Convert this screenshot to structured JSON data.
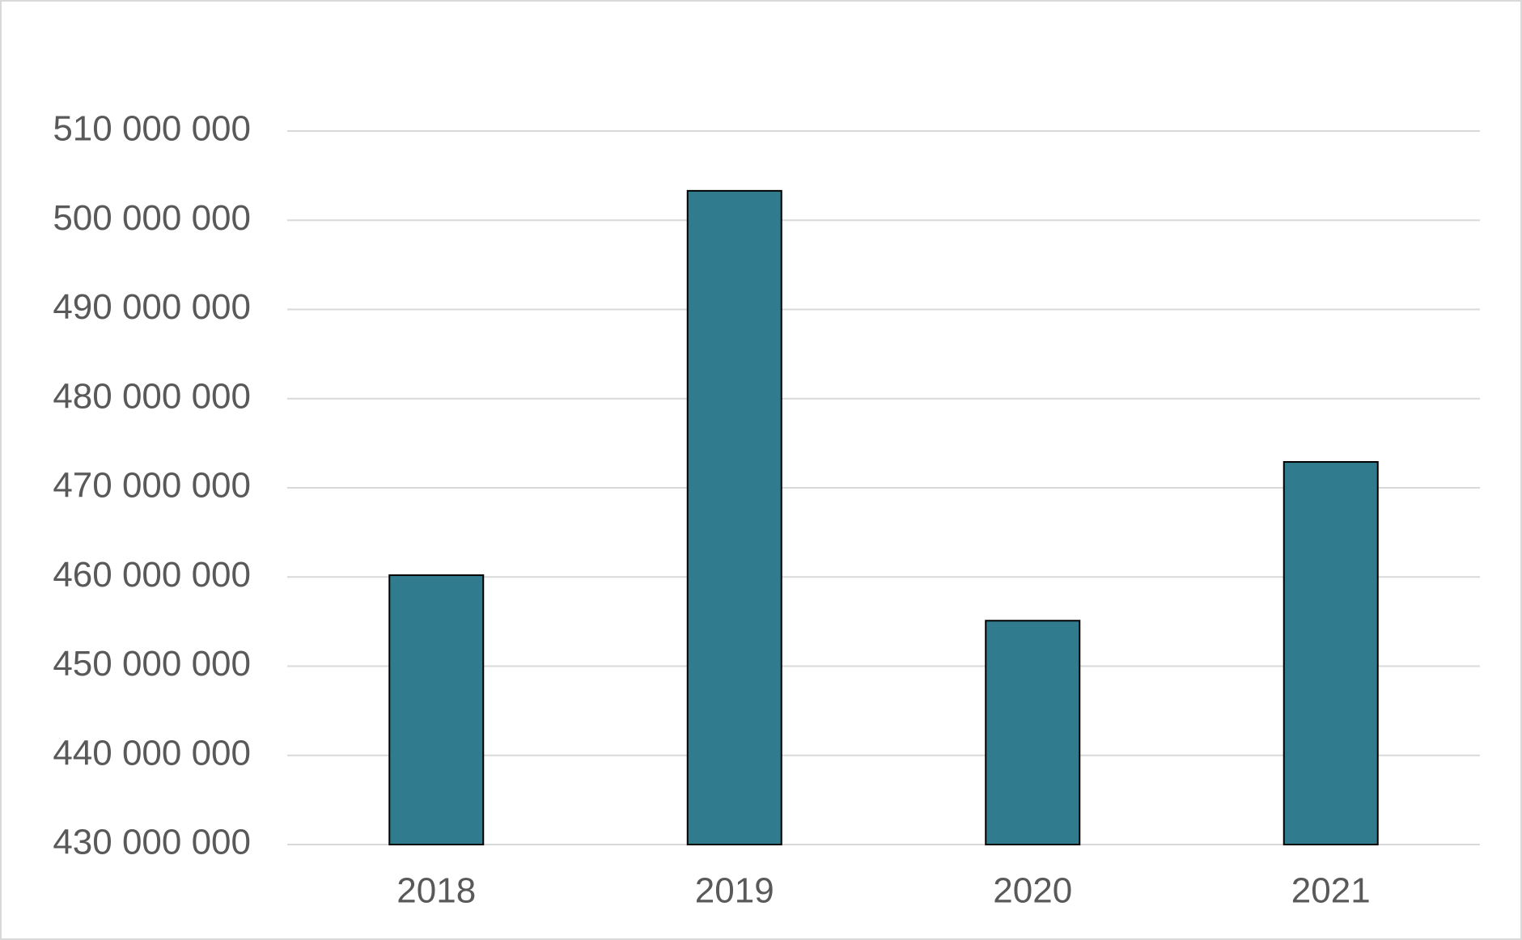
{
  "chart_data": {
    "type": "bar",
    "categories": [
      "2018",
      "2019",
      "2020",
      "2021"
    ],
    "values": [
      460200000,
      503300000,
      455100000,
      472900000
    ],
    "color": "#307b8e",
    "ylim": [
      430000000,
      510000000
    ],
    "yticks": [
      {
        "value": 430000000,
        "label": "430 000 000"
      },
      {
        "value": 440000000,
        "label": "440 000 000"
      },
      {
        "value": 450000000,
        "label": "450 000 000"
      },
      {
        "value": 460000000,
        "label": "460 000 000"
      },
      {
        "value": 470000000,
        "label": "470 000 000"
      },
      {
        "value": 480000000,
        "label": "480 000 000"
      },
      {
        "value": 490000000,
        "label": "490 000 000"
      },
      {
        "value": 500000000,
        "label": "500 000 000"
      },
      {
        "value": 510000000,
        "label": "510 000 000"
      }
    ],
    "grid": true
  }
}
